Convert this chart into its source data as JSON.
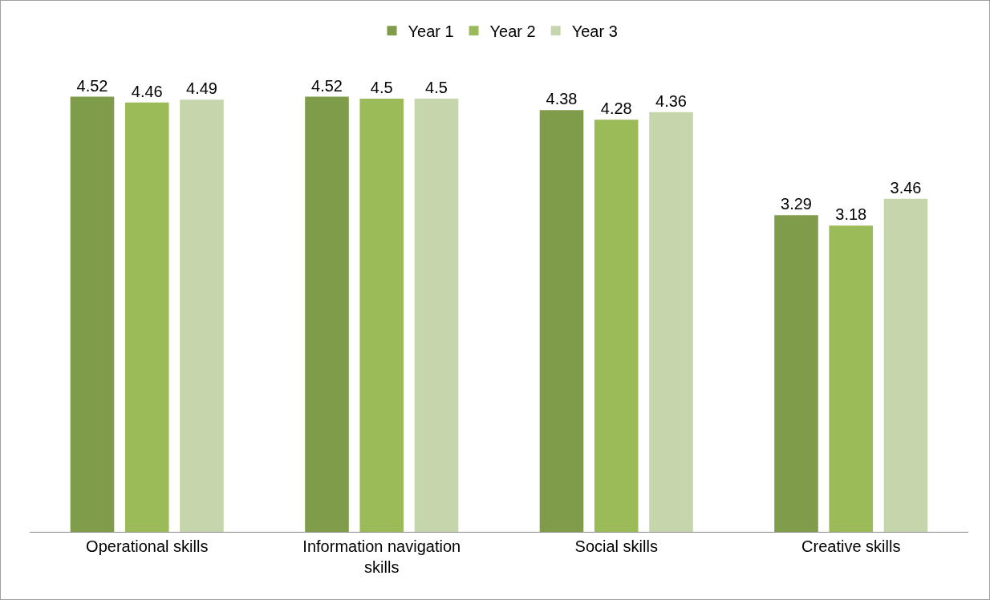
{
  "chart_data": {
    "type": "bar",
    "categories": [
      "Operational skills",
      "Information navigation skills",
      "Social skills",
      "Creative skills"
    ],
    "series": [
      {
        "name": "Year 1",
        "color": "#7f9c4a",
        "values": [
          4.52,
          4.52,
          4.38,
          3.29
        ]
      },
      {
        "name": "Year 2",
        "color": "#9bbb59",
        "values": [
          4.46,
          4.5,
          4.28,
          3.18
        ]
      },
      {
        "name": "Year 3",
        "color": "#c5d6ac",
        "values": [
          4.49,
          4.5,
          4.36,
          3.46
        ]
      }
    ],
    "tick_labels": "x",
    "data_labels": true,
    "grid": false,
    "legend": "top"
  }
}
